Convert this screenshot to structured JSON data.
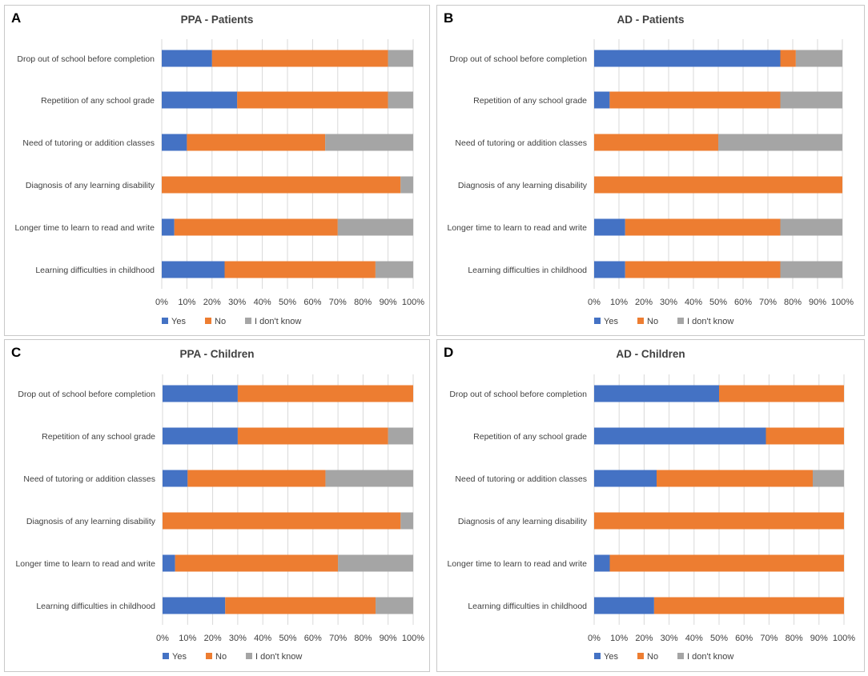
{
  "colors": {
    "yes": "#4472C4",
    "no": "#ED7D31",
    "dont_know": "#A5A5A5",
    "grid": "#D9D9D9",
    "text": "#404040"
  },
  "chart_data": [
    {
      "letter": "A",
      "type": "bar",
      "orientation": "horizontal",
      "stacked": "percent",
      "title": "PPA - Patients",
      "categories": [
        "Drop out of school before completion",
        "Repetition of any school grade",
        "Need of tutoring or addition classes",
        "Diagnosis of any learning disability",
        "Longer time to learn to read and write",
        "Learning difficulties in childhood"
      ],
      "series": [
        {
          "name": "Yes",
          "values": [
            20,
            30,
            10,
            0,
            5,
            25
          ]
        },
        {
          "name": "No",
          "values": [
            70,
            60,
            55,
            95,
            65,
            60
          ]
        },
        {
          "name": "I don't know",
          "values": [
            10,
            10,
            35,
            5,
            30,
            15
          ]
        }
      ],
      "xticks": [
        "0%",
        "10%",
        "20%",
        "30%",
        "40%",
        "50%",
        "60%",
        "70%",
        "80%",
        "90%",
        "100%"
      ],
      "xlim": [
        0,
        100
      ],
      "legend_position": "bottom-left"
    },
    {
      "letter": "B",
      "type": "bar",
      "orientation": "horizontal",
      "stacked": "percent",
      "title": "AD - Patients",
      "categories": [
        "Drop out of school before completion",
        "Repetition of any school grade",
        "Need of tutoring or addition classes",
        "Diagnosis of any learning disability",
        "Longer time to learn to read and write",
        "Learning difficulties in childhood"
      ],
      "series": [
        {
          "name": "Yes",
          "values": [
            75,
            6.25,
            0,
            0,
            12.5,
            12.5
          ]
        },
        {
          "name": "No",
          "values": [
            6.25,
            68.75,
            50,
            100,
            62.5,
            62.5
          ]
        },
        {
          "name": "I don't know",
          "values": [
            18.75,
            25,
            50,
            0,
            25,
            25
          ]
        }
      ],
      "xticks": [
        "0%",
        "10%",
        "20%",
        "30%",
        "40%",
        "50%",
        "60%",
        "70%",
        "80%",
        "90%",
        "100%"
      ],
      "xlim": [
        0,
        100
      ],
      "legend_position": "bottom-left"
    },
    {
      "letter": "C",
      "type": "bar",
      "orientation": "horizontal",
      "stacked": "percent",
      "title": "PPA - Children",
      "categories": [
        "Drop out of school before completion",
        "Repetition of any school grade",
        "Need of tutoring or addition classes",
        "Diagnosis of any learning disability",
        "Longer time to learn to read and write",
        "Learning difficulties in childhood"
      ],
      "series": [
        {
          "name": "Yes",
          "values": [
            30,
            30,
            10,
            0,
            5,
            25
          ]
        },
        {
          "name": "No",
          "values": [
            70,
            60,
            55,
            95,
            65,
            60
          ]
        },
        {
          "name": "I don't know",
          "values": [
            0,
            10,
            35,
            5,
            30,
            15
          ]
        }
      ],
      "xticks": [
        "0%",
        "10%",
        "20%",
        "30%",
        "40%",
        "50%",
        "60%",
        "70%",
        "80%",
        "90%",
        "100%"
      ],
      "xlim": [
        0,
        100
      ],
      "legend_position": "bottom-left"
    },
    {
      "letter": "D",
      "type": "bar",
      "orientation": "horizontal",
      "stacked": "percent",
      "title": "AD - Children",
      "categories": [
        "Drop out of school before completion",
        "Repetition of any school grade",
        "Need of tutoring or addition classes",
        "Diagnosis of any learning disability",
        "Longer time to learn to read and write",
        "Learning difficulties in childhood"
      ],
      "series": [
        {
          "name": "Yes",
          "values": [
            50,
            68.75,
            25,
            0,
            6.25,
            24
          ]
        },
        {
          "name": "No",
          "values": [
            50,
            31.25,
            62.5,
            100,
            93.75,
            76
          ]
        },
        {
          "name": "I don't know",
          "values": [
            0,
            0,
            12.5,
            0,
            0,
            0
          ]
        }
      ],
      "xticks": [
        "0%",
        "10%",
        "20%",
        "30%",
        "40%",
        "50%",
        "60%",
        "70%",
        "80%",
        "90%",
        "100%"
      ],
      "xlim": [
        0,
        100
      ],
      "legend_position": "bottom-left"
    }
  ]
}
